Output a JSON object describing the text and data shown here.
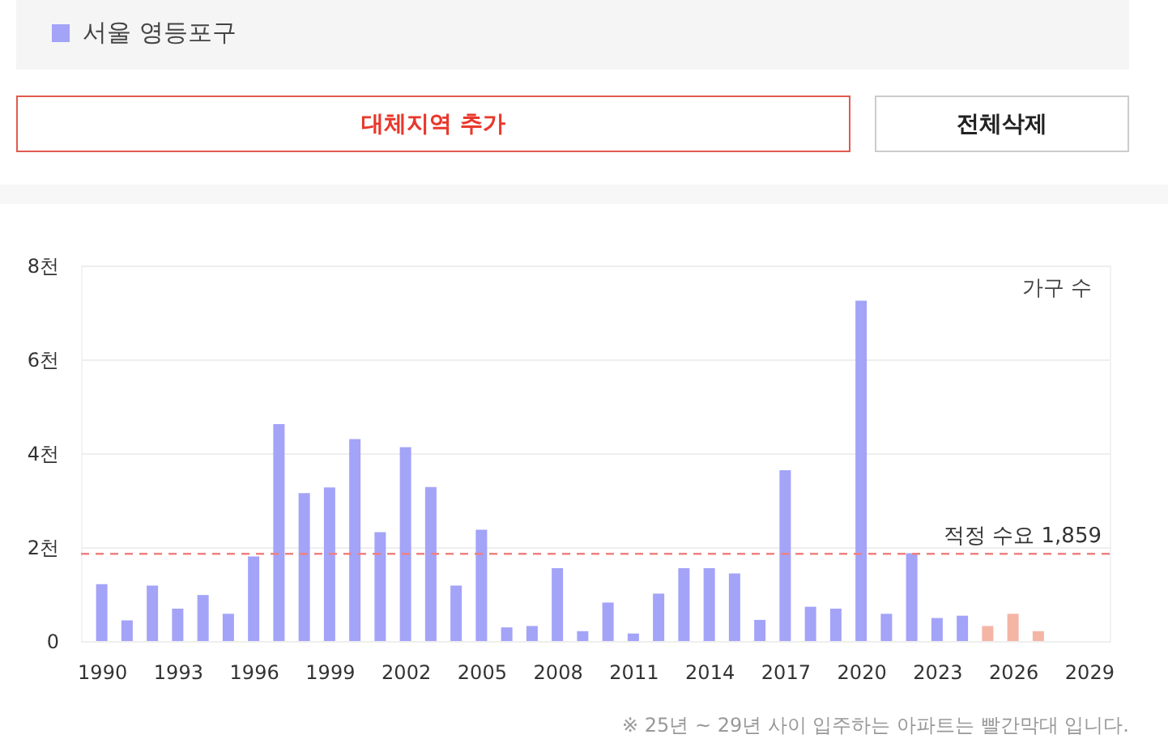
{
  "chart_data": {
    "type": "bar",
    "ylabel": "가구 수",
    "x": [
      1990,
      1991,
      1992,
      1993,
      1994,
      1995,
      1996,
      1997,
      1998,
      1999,
      2000,
      2001,
      2002,
      2003,
      2004,
      2005,
      2006,
      2007,
      2008,
      2009,
      2010,
      2011,
      2012,
      2013,
      2014,
      2015,
      2016,
      2017,
      2018,
      2019,
      2020,
      2021,
      2022,
      2023,
      2024,
      2025,
      2026,
      2027
    ],
    "series": [
      {
        "name": "서울 영등포구",
        "color": "#a3a3f8",
        "values": [
          1.21,
          0.44,
          1.18,
          0.69,
          0.98,
          0.58,
          1.8,
          4.62,
          3.15,
          3.27,
          4.3,
          2.32,
          4.13,
          3.28,
          1.18,
          2.37,
          0.29,
          0.32,
          1.55,
          0.21,
          0.82,
          0.16,
          1.01,
          1.55,
          1.55,
          1.44,
          0.45,
          3.64,
          0.73,
          0.69,
          7.25,
          0.58,
          1.87,
          0.49,
          0.54,
          null,
          null,
          null
        ]
      },
      {
        "color": "#f4b5a5",
        "values": [
          null,
          null,
          null,
          null,
          null,
          null,
          null,
          null,
          null,
          null,
          null,
          null,
          null,
          null,
          null,
          null,
          null,
          null,
          null,
          null,
          null,
          null,
          null,
          null,
          null,
          null,
          null,
          null,
          null,
          null,
          null,
          null,
          null,
          null,
          null,
          0.32,
          0.58,
          0.21
        ]
      }
    ],
    "xlim": [
      1989.5,
      2029.5
    ],
    "xticks": [
      1990,
      1993,
      1996,
      1999,
      2002,
      2005,
      2008,
      2011,
      2014,
      2017,
      2020,
      2023,
      2026,
      2029
    ],
    "ylim": [
      0,
      8
    ],
    "yticks": [
      0,
      {
        "value": 2,
        "label": "2천"
      },
      {
        "value": 4,
        "label": "4천"
      },
      {
        "value": 6,
        "label": "6천"
      },
      {
        "value": 8,
        "label": "8천"
      }
    ],
    "ref_lines": [
      {
        "axis": "y",
        "value": 1.859,
        "label": "적정 수요 1,859",
        "color": "#f08080",
        "line_style": "dashed"
      }
    ],
    "grid": "y",
    "legend": "top left",
    "annotations": [
      "대체지역 추가",
      "전체삭제",
      "※ 25년 ~ 29년 사이 입주하는 아파트는 빨간막대 입니다."
    ]
  }
}
